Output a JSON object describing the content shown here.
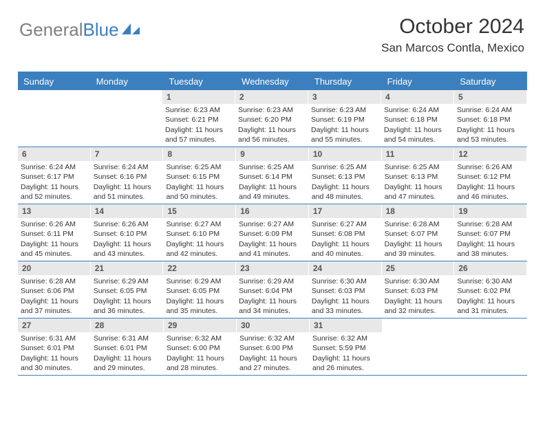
{
  "logo": {
    "part1": "General",
    "part2": "Blue"
  },
  "title": "October 2024",
  "location": "San Marcos Contla, Mexico",
  "colors": {
    "accent": "#3b7fbf",
    "dayNumberBg": "#e8e8e8",
    "text": "#333333",
    "logoGray": "#7f7f7f"
  },
  "daysOfWeek": [
    "Sunday",
    "Monday",
    "Tuesday",
    "Wednesday",
    "Thursday",
    "Friday",
    "Saturday"
  ],
  "startOffset": 2,
  "days": [
    {
      "n": "1",
      "sr": "6:23 AM",
      "ss": "6:21 PM",
      "dl": "11 hours and 57 minutes."
    },
    {
      "n": "2",
      "sr": "6:23 AM",
      "ss": "6:20 PM",
      "dl": "11 hours and 56 minutes."
    },
    {
      "n": "3",
      "sr": "6:23 AM",
      "ss": "6:19 PM",
      "dl": "11 hours and 55 minutes."
    },
    {
      "n": "4",
      "sr": "6:24 AM",
      "ss": "6:18 PM",
      "dl": "11 hours and 54 minutes."
    },
    {
      "n": "5",
      "sr": "6:24 AM",
      "ss": "6:18 PM",
      "dl": "11 hours and 53 minutes."
    },
    {
      "n": "6",
      "sr": "6:24 AM",
      "ss": "6:17 PM",
      "dl": "11 hours and 52 minutes."
    },
    {
      "n": "7",
      "sr": "6:24 AM",
      "ss": "6:16 PM",
      "dl": "11 hours and 51 minutes."
    },
    {
      "n": "8",
      "sr": "6:25 AM",
      "ss": "6:15 PM",
      "dl": "11 hours and 50 minutes."
    },
    {
      "n": "9",
      "sr": "6:25 AM",
      "ss": "6:14 PM",
      "dl": "11 hours and 49 minutes."
    },
    {
      "n": "10",
      "sr": "6:25 AM",
      "ss": "6:13 PM",
      "dl": "11 hours and 48 minutes."
    },
    {
      "n": "11",
      "sr": "6:25 AM",
      "ss": "6:13 PM",
      "dl": "11 hours and 47 minutes."
    },
    {
      "n": "12",
      "sr": "6:26 AM",
      "ss": "6:12 PM",
      "dl": "11 hours and 46 minutes."
    },
    {
      "n": "13",
      "sr": "6:26 AM",
      "ss": "6:11 PM",
      "dl": "11 hours and 45 minutes."
    },
    {
      "n": "14",
      "sr": "6:26 AM",
      "ss": "6:10 PM",
      "dl": "11 hours and 43 minutes."
    },
    {
      "n": "15",
      "sr": "6:27 AM",
      "ss": "6:10 PM",
      "dl": "11 hours and 42 minutes."
    },
    {
      "n": "16",
      "sr": "6:27 AM",
      "ss": "6:09 PM",
      "dl": "11 hours and 41 minutes."
    },
    {
      "n": "17",
      "sr": "6:27 AM",
      "ss": "6:08 PM",
      "dl": "11 hours and 40 minutes."
    },
    {
      "n": "18",
      "sr": "6:28 AM",
      "ss": "6:07 PM",
      "dl": "11 hours and 39 minutes."
    },
    {
      "n": "19",
      "sr": "6:28 AM",
      "ss": "6:07 PM",
      "dl": "11 hours and 38 minutes."
    },
    {
      "n": "20",
      "sr": "6:28 AM",
      "ss": "6:06 PM",
      "dl": "11 hours and 37 minutes."
    },
    {
      "n": "21",
      "sr": "6:29 AM",
      "ss": "6:05 PM",
      "dl": "11 hours and 36 minutes."
    },
    {
      "n": "22",
      "sr": "6:29 AM",
      "ss": "6:05 PM",
      "dl": "11 hours and 35 minutes."
    },
    {
      "n": "23",
      "sr": "6:29 AM",
      "ss": "6:04 PM",
      "dl": "11 hours and 34 minutes."
    },
    {
      "n": "24",
      "sr": "6:30 AM",
      "ss": "6:03 PM",
      "dl": "11 hours and 33 minutes."
    },
    {
      "n": "25",
      "sr": "6:30 AM",
      "ss": "6:03 PM",
      "dl": "11 hours and 32 minutes."
    },
    {
      "n": "26",
      "sr": "6:30 AM",
      "ss": "6:02 PM",
      "dl": "11 hours and 31 minutes."
    },
    {
      "n": "27",
      "sr": "6:31 AM",
      "ss": "6:01 PM",
      "dl": "11 hours and 30 minutes."
    },
    {
      "n": "28",
      "sr": "6:31 AM",
      "ss": "6:01 PM",
      "dl": "11 hours and 29 minutes."
    },
    {
      "n": "29",
      "sr": "6:32 AM",
      "ss": "6:00 PM",
      "dl": "11 hours and 28 minutes."
    },
    {
      "n": "30",
      "sr": "6:32 AM",
      "ss": "6:00 PM",
      "dl": "11 hours and 27 minutes."
    },
    {
      "n": "31",
      "sr": "6:32 AM",
      "ss": "5:59 PM",
      "dl": "11 hours and 26 minutes."
    }
  ],
  "labels": {
    "sunrise": "Sunrise:",
    "sunset": "Sunset:",
    "daylight": "Daylight:"
  }
}
